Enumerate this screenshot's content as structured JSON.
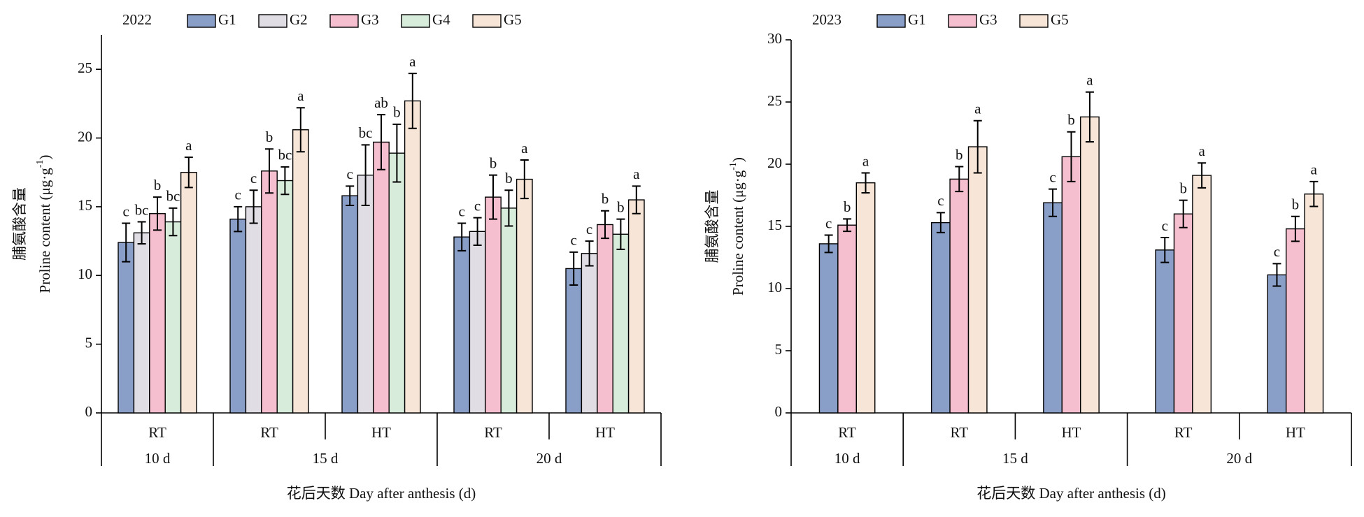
{
  "chart_data": [
    {
      "type": "bar",
      "title": "2022",
      "ylabel_cn": "脯氨酸含量",
      "ylabel": {
        "text": "Proline content (μg·g",
        "sup": "-1",
        "end": ")"
      },
      "xlabel": "花后天数 Day after anthesis (d)",
      "groups": [
        {
          "label": "10 d",
          "categories": [
            "RT"
          ]
        },
        {
          "label": "15 d",
          "categories": [
            "RT",
            "HT"
          ]
        },
        {
          "label": "20 d",
          "categories": [
            "RT",
            "HT"
          ]
        }
      ],
      "ylim": [
        0,
        27.5
      ],
      "yticks": [
        0,
        5,
        10,
        15,
        20,
        25
      ],
      "series": [
        {
          "name": "G1",
          "color": "#8a9fc8",
          "values": [
            12.4,
            14.1,
            15.8,
            12.8,
            10.5
          ],
          "errors": [
            1.4,
            0.9,
            0.7,
            1.0,
            1.2
          ],
          "letters": [
            "c",
            "c",
            "c",
            "c",
            "c"
          ]
        },
        {
          "name": "G2",
          "color": "#e1dde5",
          "values": [
            13.1,
            15.0,
            17.3,
            13.2,
            11.6
          ],
          "errors": [
            0.8,
            1.2,
            2.2,
            1.0,
            0.9
          ],
          "letters": [
            "bc",
            "c",
            "bc",
            "c",
            "c"
          ]
        },
        {
          "name": "G3",
          "color": "#f6bfd0",
          "values": [
            14.5,
            17.6,
            19.7,
            15.7,
            13.7
          ],
          "errors": [
            1.2,
            1.6,
            2.0,
            1.6,
            1.0
          ],
          "letters": [
            "b",
            "b",
            "ab",
            "b",
            "b"
          ]
        },
        {
          "name": "G4",
          "color": "#d8ecdc",
          "values": [
            13.9,
            16.9,
            18.9,
            14.9,
            13.0
          ],
          "errors": [
            1.0,
            1.0,
            2.1,
            1.3,
            1.1
          ],
          "letters": [
            "bc",
            "bc",
            "b",
            "b",
            "b"
          ]
        },
        {
          "name": "G5",
          "color": "#f7e6d8",
          "values": [
            17.5,
            20.6,
            22.7,
            17.0,
            15.5
          ],
          "errors": [
            1.1,
            1.6,
            2.0,
            1.4,
            1.0
          ],
          "letters": [
            "a",
            "a",
            "a",
            "a",
            "a"
          ]
        }
      ]
    },
    {
      "type": "bar",
      "title": "2023",
      "ylabel_cn": "脯氨酸含量",
      "ylabel": {
        "text": "Proline content (μg·g",
        "sup": "-1",
        "end": ")"
      },
      "xlabel": "花后天数 Day after anthesis (d)",
      "groups": [
        {
          "label": "10 d",
          "categories": [
            "RT"
          ]
        },
        {
          "label": "15 d",
          "categories": [
            "RT",
            "HT"
          ]
        },
        {
          "label": "20 d",
          "categories": [
            "RT",
            "HT"
          ]
        }
      ],
      "ylim": [
        0,
        30
      ],
      "yticks": [
        0,
        5,
        10,
        15,
        20,
        25,
        30
      ],
      "series": [
        {
          "name": "G1",
          "color": "#8a9fc8",
          "values": [
            13.6,
            15.3,
            16.9,
            13.1,
            11.1
          ],
          "errors": [
            0.7,
            0.8,
            1.1,
            1.0,
            0.9
          ],
          "letters": [
            "c",
            "c",
            "c",
            "c",
            "c"
          ]
        },
        {
          "name": "G3",
          "color": "#f6bfd0",
          "values": [
            15.1,
            18.8,
            20.6,
            16.0,
            14.8
          ],
          "errors": [
            0.5,
            1.0,
            2.0,
            1.1,
            1.0
          ],
          "letters": [
            "b",
            "b",
            "b",
            "b",
            "b"
          ]
        },
        {
          "name": "G5",
          "color": "#f7e6d8",
          "values": [
            18.5,
            21.4,
            23.8,
            19.1,
            17.6
          ],
          "errors": [
            0.8,
            2.1,
            2.0,
            1.0,
            1.0
          ],
          "letters": [
            "a",
            "a",
            "a",
            "a",
            "a"
          ]
        }
      ]
    }
  ]
}
